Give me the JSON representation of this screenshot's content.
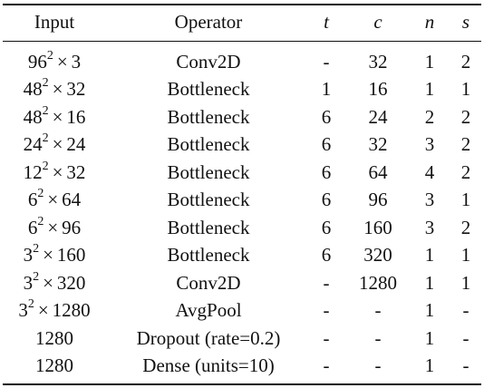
{
  "table": {
    "headers": {
      "input": "Input",
      "operator": "Operator",
      "t": "t",
      "c": "c",
      "n": "n",
      "s": "s"
    },
    "rows": [
      {
        "input_base": "96",
        "input_exp": "2",
        "input_ch": "3",
        "operator": "Conv2D",
        "t": "-",
        "c": "32",
        "n": "1",
        "s": "2"
      },
      {
        "input_base": "48",
        "input_exp": "2",
        "input_ch": "32",
        "operator": "Bottleneck",
        "t": "1",
        "c": "16",
        "n": "1",
        "s": "1"
      },
      {
        "input_base": "48",
        "input_exp": "2",
        "input_ch": "16",
        "operator": "Bottleneck",
        "t": "6",
        "c": "24",
        "n": "2",
        "s": "2"
      },
      {
        "input_base": "24",
        "input_exp": "2",
        "input_ch": "24",
        "operator": "Bottleneck",
        "t": "6",
        "c": "32",
        "n": "3",
        "s": "2"
      },
      {
        "input_base": "12",
        "input_exp": "2",
        "input_ch": "32",
        "operator": "Bottleneck",
        "t": "6",
        "c": "64",
        "n": "4",
        "s": "2"
      },
      {
        "input_base": "6",
        "input_exp": "2",
        "input_ch": "64",
        "operator": "Bottleneck",
        "t": "6",
        "c": "96",
        "n": "3",
        "s": "1"
      },
      {
        "input_base": "6",
        "input_exp": "2",
        "input_ch": "96",
        "operator": "Bottleneck",
        "t": "6",
        "c": "160",
        "n": "3",
        "s": "2"
      },
      {
        "input_base": "3",
        "input_exp": "2",
        "input_ch": "160",
        "operator": "Bottleneck",
        "t": "6",
        "c": "320",
        "n": "1",
        "s": "1"
      },
      {
        "input_base": "3",
        "input_exp": "2",
        "input_ch": "320",
        "operator": "Conv2D",
        "t": "-",
        "c": "1280",
        "n": "1",
        "s": "1"
      },
      {
        "input_base": "3",
        "input_exp": "2",
        "input_ch": "1280",
        "operator": "AvgPool",
        "t": "-",
        "c": "-",
        "n": "1",
        "s": "-"
      },
      {
        "input_plain": "1280",
        "operator": "Dropout (rate=0.2)",
        "t": "-",
        "c": "-",
        "n": "1",
        "s": "-"
      },
      {
        "input_plain": "1280",
        "operator": "Dense (units=10)",
        "t": "-",
        "c": "-",
        "n": "1",
        "s": "-"
      }
    ]
  }
}
